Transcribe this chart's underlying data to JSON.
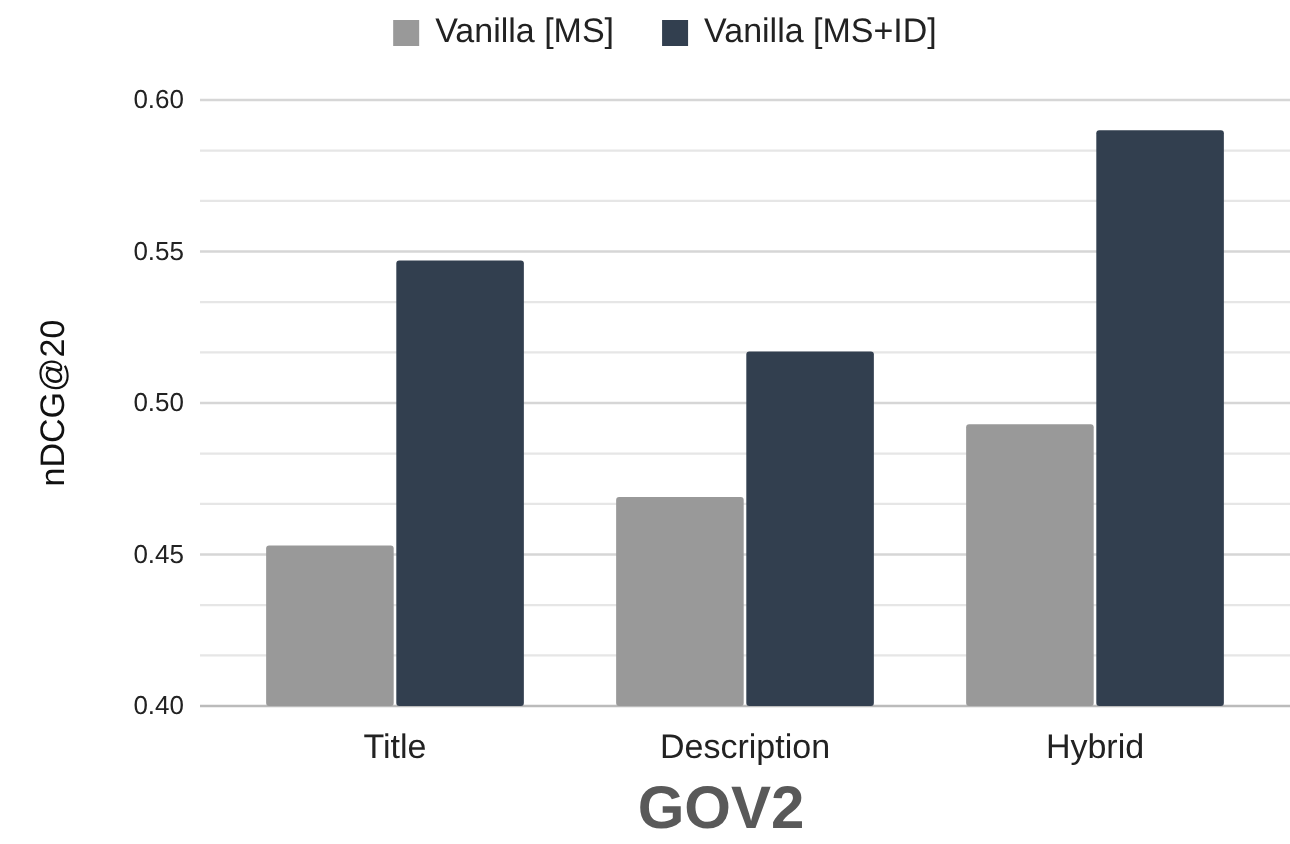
{
  "chart_data": {
    "type": "bar",
    "title": "GOV2",
    "ylabel": "nDCG@20",
    "categories": [
      "Title",
      "Description",
      "Hybrid"
    ],
    "series": [
      {
        "name": "Vanilla [MS]",
        "color": "#999999",
        "values": [
          0.453,
          0.469,
          0.493
        ]
      },
      {
        "name": "Vanilla [MS+ID]",
        "color": "#323f4f",
        "values": [
          0.547,
          0.517,
          0.59
        ]
      }
    ],
    "ylim": [
      0.4,
      0.6
    ],
    "yticks": [
      {
        "value": 0.4,
        "label": "0.40"
      },
      {
        "value": 0.4167,
        "label": null
      },
      {
        "value": 0.4333,
        "label": null
      },
      {
        "value": 0.45,
        "label": "0.45"
      },
      {
        "value": 0.4667,
        "label": null
      },
      {
        "value": 0.4833,
        "label": null
      },
      {
        "value": 0.5,
        "label": "0.50"
      },
      {
        "value": 0.5167,
        "label": null
      },
      {
        "value": 0.5333,
        "label": null
      },
      {
        "value": 0.55,
        "label": "0.55"
      },
      {
        "value": 0.5667,
        "label": null
      },
      {
        "value": 0.5833,
        "label": null
      },
      {
        "value": 0.6,
        "label": "0.60"
      }
    ],
    "grid": "y",
    "legend": "top"
  }
}
